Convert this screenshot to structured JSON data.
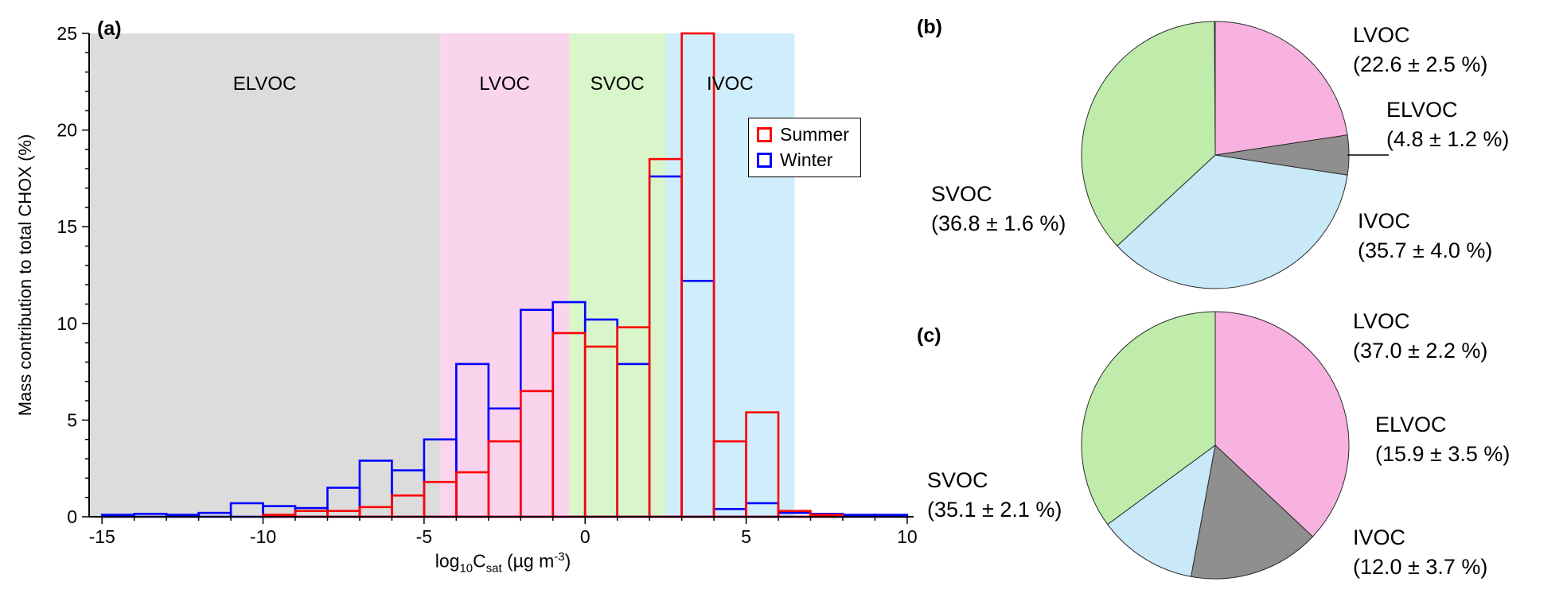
{
  "figure": {
    "panels": {
      "a": {
        "label": "(a)",
        "ylabel": "Mass contribution to total CHOX (%)",
        "xlabel_plain": "log10Csat (µg m-3)",
        "xlabel": {
          "t1": "log",
          "sub1": "10",
          "t2": "C",
          "sub2": "sat",
          "t3": " (µg m",
          "sup1": "-3",
          "t4": ")"
        },
        "legend": [
          {
            "label": "Summer"
          },
          {
            "label": "Winter"
          }
        ]
      },
      "b": {
        "label": "(b)"
      },
      "c": {
        "label": "(c)"
      }
    }
  },
  "chart_data": [
    {
      "type": "bar",
      "subtype": "step_histogram",
      "xlabel": "log10Csat (µg m-3)",
      "ylabel": "Mass contribution to total CHOX (%)",
      "xlim": [
        -15.4,
        10.2
      ],
      "ylim": [
        0,
        25
      ],
      "xticks": [
        -15,
        -10,
        -5,
        0,
        5,
        10
      ],
      "yticks": [
        0,
        5,
        10,
        15,
        20,
        25
      ],
      "bin_start": -15,
      "bin_width": 1,
      "legend_position": "top-right",
      "series": [
        {
          "name": "Summer",
          "color": "#FF0000",
          "values": [
            0,
            0,
            0,
            0,
            0,
            0.1,
            0.3,
            0.3,
            0.5,
            1.1,
            1.8,
            2.3,
            3.9,
            6.5,
            9.5,
            8.8,
            9.8,
            18.5,
            25.0,
            3.9,
            5.4,
            0.3,
            0.1,
            0,
            0
          ]
        },
        {
          "name": "Winter",
          "color": "#0000FF",
          "values": [
            0.1,
            0.15,
            0.1,
            0.2,
            0.7,
            0.55,
            0.45,
            1.5,
            2.9,
            2.4,
            4.0,
            7.9,
            5.6,
            10.7,
            11.1,
            10.2,
            7.9,
            17.6,
            12.2,
            0.4,
            0.7,
            0.2,
            0.15,
            0.1,
            0.1
          ]
        }
      ],
      "regions": [
        {
          "name": "ELVOC",
          "from": -15.4,
          "to": -4.5,
          "color": "#DCDCDC"
        },
        {
          "name": "LVOC",
          "from": -4.5,
          "to": -0.5,
          "color": "#FAD4ED"
        },
        {
          "name": "SVOC",
          "from": -0.5,
          "to": 2.5,
          "color": "#D9F6CB"
        },
        {
          "name": "IVOC",
          "from": 2.5,
          "to": 6.5,
          "color": "#D0EDFB"
        }
      ]
    },
    {
      "type": "pie",
      "panel": "b",
      "slices": [
        {
          "name": "LVOC",
          "value": 22.6,
          "err": 2.5,
          "value_label": "(22.6 ± 2.5 %)",
          "color": "#F7B2E0"
        },
        {
          "name": "ELVOC",
          "value": 4.8,
          "err": 1.2,
          "value_label": "(4.8 ± 1.2 %)",
          "color": "#8F8F8F",
          "leader": true
        },
        {
          "name": "IVOC",
          "value": 35.7,
          "err": 4.0,
          "value_label": "(35.7 ± 4.0 %)",
          "color": "#C9E8F8"
        },
        {
          "name": "SVOC",
          "value": 36.8,
          "err": 1.6,
          "value_label": "(36.8 ± 1.6 %)",
          "color": "#BFECAA"
        }
      ]
    },
    {
      "type": "pie",
      "panel": "c",
      "slices": [
        {
          "name": "LVOC",
          "value": 37.0,
          "err": 2.2,
          "value_label": "(37.0 ± 2.2 %)",
          "color": "#F7B2E0"
        },
        {
          "name": "ELVOC",
          "value": 15.9,
          "err": 3.5,
          "value_label": "(15.9 ± 3.5 %)",
          "color": "#8F8F8F"
        },
        {
          "name": "IVOC",
          "value": 12.0,
          "err": 3.7,
          "value_label": "(12.0 ± 3.7 %)",
          "color": "#C9E8F8"
        },
        {
          "name": "SVOC",
          "value": 35.1,
          "err": 2.1,
          "value_label": "(35.1 ± 2.1 %)",
          "color": "#BFECAA"
        }
      ]
    }
  ]
}
